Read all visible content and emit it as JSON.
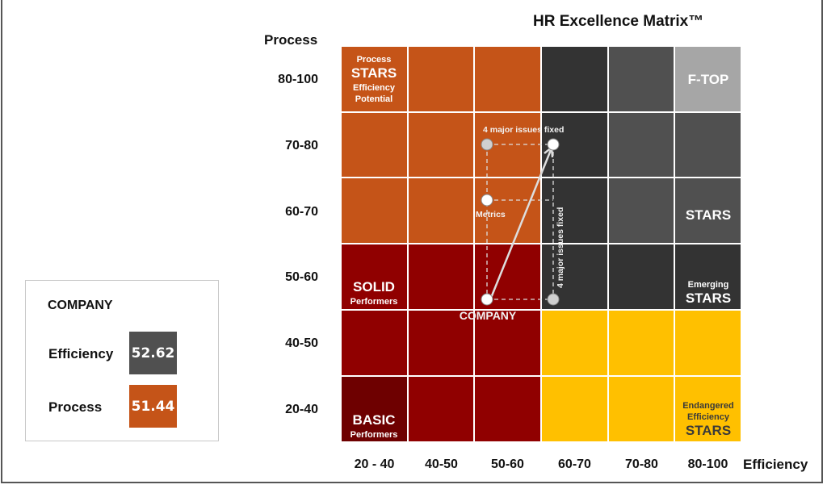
{
  "title": "HR Excellence Matrix™",
  "y_axis": {
    "title": "Process",
    "labels": [
      "80-100",
      "70-80",
      "60-70",
      "50-60",
      "40-50",
      "20-40"
    ]
  },
  "x_axis": {
    "title": "Efficiency",
    "labels": [
      "20 - 40",
      "40-50",
      "50-60",
      "60-70",
      "70-80",
      "80-100"
    ]
  },
  "colors": {
    "orange": "#C55418",
    "red": "#900000",
    "dark_red": "#6E0000",
    "charcoal": "#333333",
    "gray": "#505050",
    "light_gray": "#A6A6A6",
    "yellow": "#FFC000"
  },
  "grid_colors": [
    [
      "#C55418",
      "#C55418",
      "#C55418",
      "#333333",
      "#505050",
      "#A6A6A6"
    ],
    [
      "#C55418",
      "#C55418",
      "#C55418",
      "#333333",
      "#505050",
      "#505050"
    ],
    [
      "#C55418",
      "#C55418",
      "#C55418",
      "#333333",
      "#505050",
      "#505050"
    ],
    [
      "#900000",
      "#900000",
      "#900000",
      "#333333",
      "#333333",
      "#333333"
    ],
    [
      "#900000",
      "#900000",
      "#900000",
      "#FFC000",
      "#FFC000",
      "#FFC000"
    ],
    [
      "#6E0000",
      "#900000",
      "#900000",
      "#FFC000",
      "#FFC000",
      "#FFC000"
    ]
  ],
  "zones": {
    "process_stars": {
      "line1": "Process",
      "line2": "STARS",
      "line3": "Efficiency",
      "line4": "Potential"
    },
    "f_top": "F-TOP",
    "stars": "STARS",
    "emerging_stars": {
      "line1": "Emerging",
      "line2": "STARS"
    },
    "solid": {
      "line1": "SOLID",
      "line2": "Performers"
    },
    "basic": {
      "line1": "BASIC",
      "line2": "Performers"
    },
    "endangered": {
      "line1": "Endangered",
      "line2": "Efficiency",
      "line3": "STARS"
    }
  },
  "annotations": {
    "top": "4 major issues fixed",
    "metrics": "Metrics",
    "vertical": "4 major issues fixed",
    "company": "COMPANY"
  },
  "company_panel": {
    "title": "COMPANY",
    "efficiency_label": "Efficiency",
    "efficiency_value": "52.62",
    "process_label": "Process",
    "process_value": "51.44"
  }
}
